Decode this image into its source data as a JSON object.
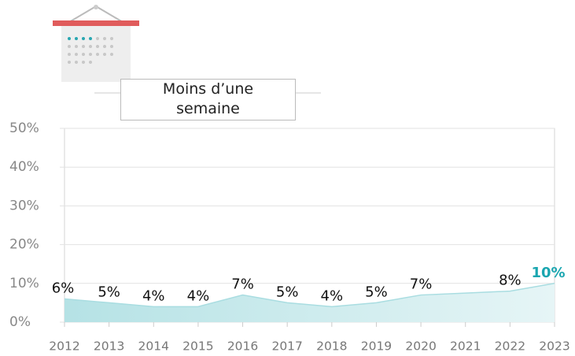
{
  "chart_data": {
    "type": "area",
    "title": "Moins d’une semaine",
    "categories": [
      "2012",
      "2013",
      "2014",
      "2015",
      "2016",
      "2017",
      "2018",
      "2019",
      "2020",
      "2021",
      "2022",
      "2023"
    ],
    "values": [
      6,
      5,
      4,
      4,
      7,
      5,
      4,
      5,
      7,
      7.5,
      8,
      10
    ],
    "value_labels": [
      "6%",
      "5%",
      "4%",
      "4%",
      "7%",
      "5%",
      "4%",
      "5%",
      "7%",
      null,
      "8%",
      "10%"
    ],
    "color": "#a9dde1",
    "highlight_color": "#1aa6b0",
    "ylim": [
      0,
      50
    ],
    "yticks": [
      {
        "value": 0,
        "label": "0%"
      },
      {
        "value": 10,
        "label": "10%"
      },
      {
        "value": 20,
        "label": "20%"
      },
      {
        "value": 30,
        "label": "30%"
      },
      {
        "value": 40,
        "label": "40%"
      },
      {
        "value": 50,
        "label": "50%"
      }
    ],
    "grid": true
  }
}
